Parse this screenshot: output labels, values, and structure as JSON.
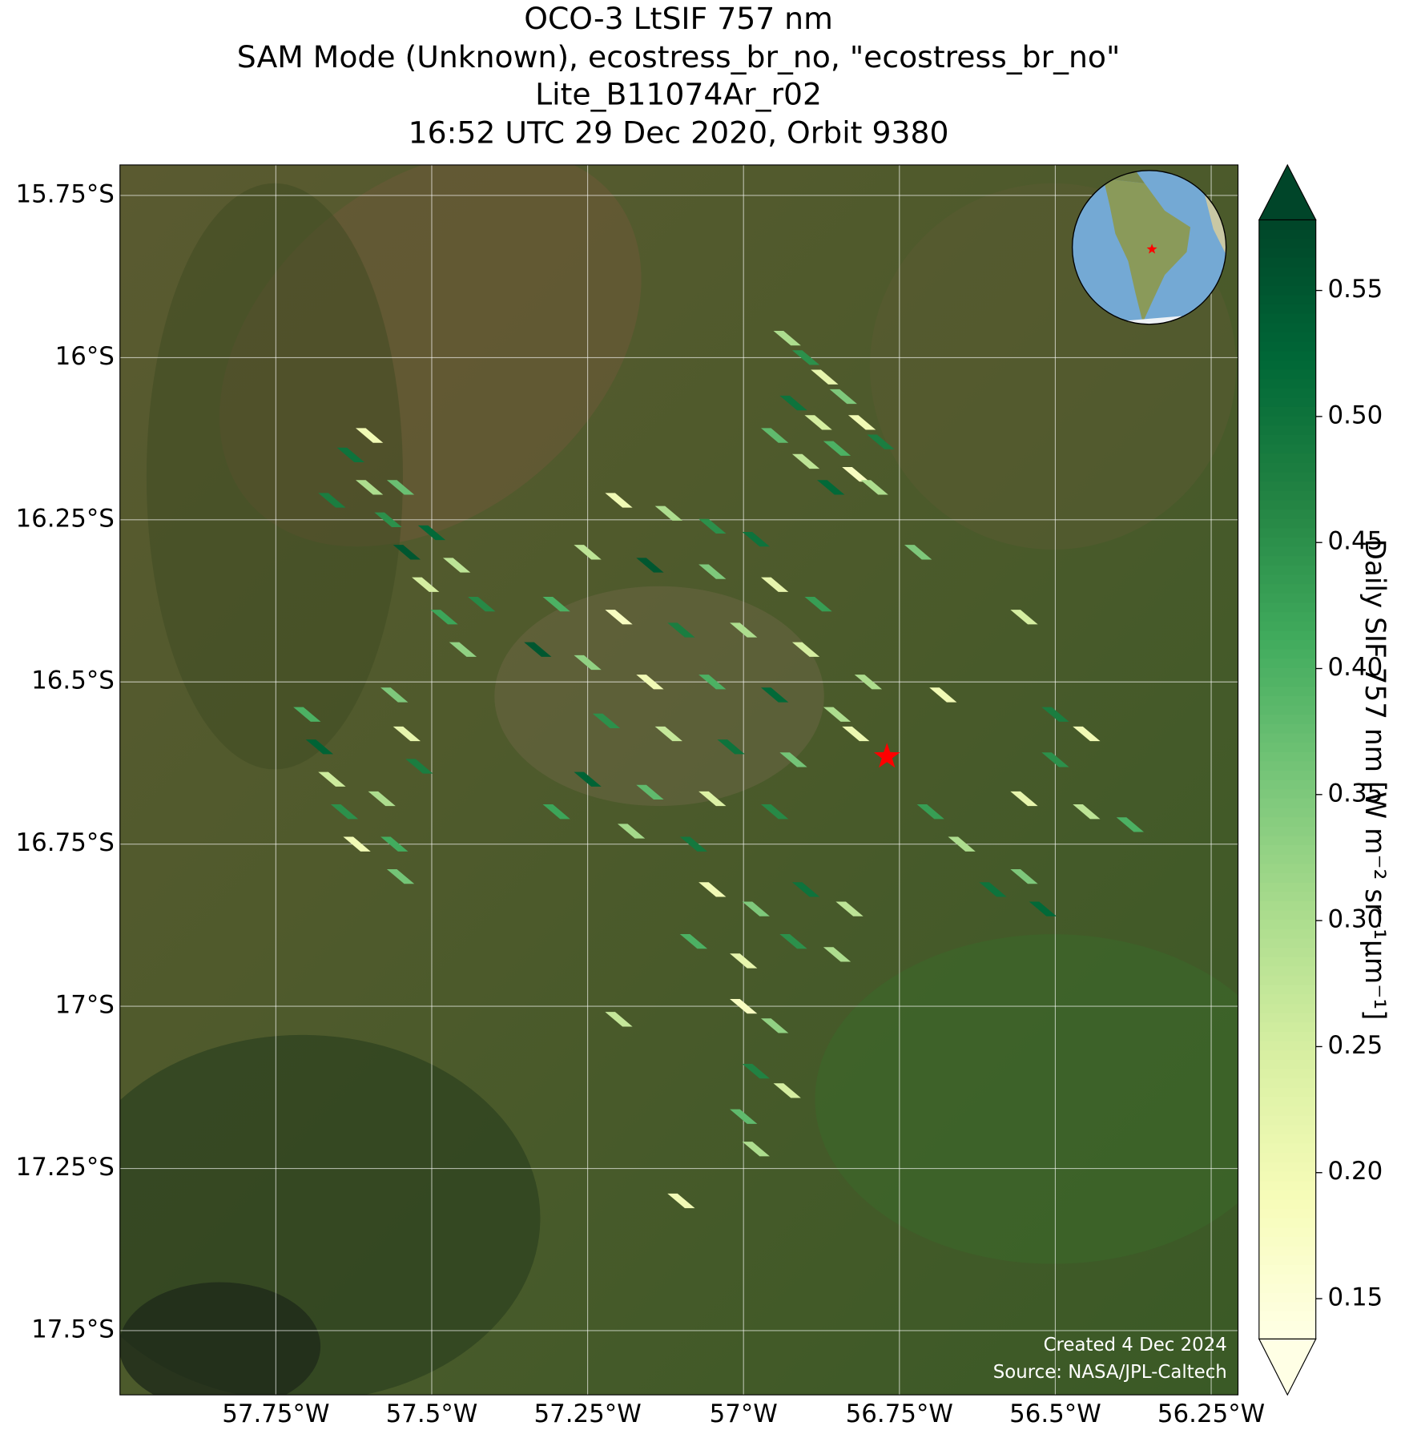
{
  "chart_data": {
    "type": "map",
    "title": [
      "OCO-3 LtSIF 757 nm",
      "SAM Mode (Unknown), ecostress_br_no, \"ecostress_br_no\"",
      "Lite_B11074Ar_r02",
      "16:52 UTC 29 Dec 2020, Orbit 9380"
    ],
    "xlim": [
      -58.0,
      -56.207
    ],
    "ylim": [
      -17.599,
      -15.703
    ],
    "xticks": [
      {
        "value": -57.75,
        "label": "57.75°W"
      },
      {
        "value": -57.5,
        "label": "57.5°W"
      },
      {
        "value": -57.25,
        "label": "57.25°W"
      },
      {
        "value": -57,
        "label": "57°W"
      },
      {
        "value": -56.75,
        "label": "56.75°W"
      },
      {
        "value": -56.5,
        "label": "56.5°W"
      },
      {
        "value": -56.25,
        "label": "56.25°W"
      }
    ],
    "yticks": [
      {
        "value": -15.75,
        "label": "15.75°S"
      },
      {
        "value": -16,
        "label": "16°S"
      },
      {
        "value": -16.25,
        "label": "16.25°S"
      },
      {
        "value": -16.5,
        "label": "16.5°S"
      },
      {
        "value": -16.75,
        "label": "16.75°S"
      },
      {
        "value": -17,
        "label": "17°S"
      },
      {
        "value": -17.25,
        "label": "17.25°S"
      },
      {
        "value": -17.5,
        "label": "17.5°S"
      }
    ],
    "grid": true,
    "colormap": "YlGn",
    "clim": [
      0.134,
      0.578
    ],
    "cticks": [
      0.15,
      {
        "value": 0.2,
        "label": "0.20"
      },
      0.25,
      {
        "value": 0.3,
        "label": "0.30"
      },
      0.35,
      {
        "value": 0.4,
        "label": "0.40"
      },
      0.45,
      {
        "value": 0.5,
        "label": "0.50"
      },
      0.55
    ],
    "colorbar_label": "Daily SIF 757 nm [W m⁻² sr⁻¹μm⁻¹]",
    "marker": {
      "lon": -56.77,
      "lat": -16.615,
      "color": "#ff0000"
    },
    "credit": [
      "Created 4 Dec 2024",
      "Source: NASA/JPL-Caltech"
    ],
    "x": [
      -56.93,
      -56.9,
      -56.87,
      -56.84,
      -56.81,
      -56.78,
      -56.92,
      -56.88,
      -56.85,
      -56.82,
      -56.79,
      -56.95,
      -56.9,
      -56.86,
      -57.63,
      -57.6,
      -57.57,
      -57.54,
      -57.51,
      -57.48,
      -57.45,
      -57.6,
      -57.66,
      -57.55,
      -57.5,
      -57.46,
      -57.42,
      -57.7,
      -57.68,
      -57.66,
      -57.64,
      -57.62,
      -57.56,
      -57.54,
      -57.52,
      -57.58,
      -57.56,
      -57.55,
      -57.2,
      -57.12,
      -57.05,
      -56.98,
      -57.25,
      -57.15,
      -57.05,
      -56.95,
      -56.88,
      -57.3,
      -57.2,
      -57.1,
      -57.0,
      -56.9,
      -57.33,
      -57.25,
      -57.15,
      -57.05,
      -56.95,
      -56.85,
      -57.22,
      -57.12,
      -57.02,
      -56.92,
      -56.82,
      -57.25,
      -57.15,
      -57.05,
      -56.95,
      -57.18,
      -57.08,
      -57.3,
      -57.05,
      -56.98,
      -56.9,
      -56.83,
      -57.08,
      -57.0,
      -56.92,
      -56.85,
      -57.0,
      -56.95,
      -56.98,
      -56.93,
      -57.0,
      -56.98,
      -57.1,
      -57.2,
      -56.7,
      -56.65,
      -56.6,
      -56.55,
      -56.5,
      -56.45,
      -56.38,
      -56.55,
      -56.52,
      -56.5,
      -56.45,
      -56.55,
      -56.72,
      -56.8,
      -56.68
    ],
    "y": [
      -15.97,
      -16.0,
      -16.03,
      -16.06,
      -16.1,
      -16.13,
      -16.07,
      -16.1,
      -16.14,
      -16.18,
      -16.2,
      -16.12,
      -16.16,
      -16.2,
      -16.15,
      -16.2,
      -16.25,
      -16.3,
      -16.35,
      -16.4,
      -16.45,
      -16.12,
      -16.22,
      -16.2,
      -16.27,
      -16.32,
      -16.38,
      -16.55,
      -16.6,
      -16.65,
      -16.7,
      -16.75,
      -16.52,
      -16.58,
      -16.63,
      -16.68,
      -16.75,
      -16.8,
      -16.22,
      -16.24,
      -16.26,
      -16.28,
      -16.3,
      -16.32,
      -16.33,
      -16.35,
      -16.38,
      -16.38,
      -16.4,
      -16.42,
      -16.42,
      -16.45,
      -16.45,
      -16.47,
      -16.5,
      -16.5,
      -16.52,
      -16.55,
      -16.56,
      -16.58,
      -16.6,
      -16.62,
      -16.58,
      -16.65,
      -16.67,
      -16.68,
      -16.7,
      -16.73,
      -16.75,
      -16.7,
      -16.82,
      -16.85,
      -16.82,
      -16.85,
      -16.9,
      -16.93,
      -16.9,
      -16.92,
      -17.0,
      -17.03,
      -17.1,
      -17.13,
      -17.17,
      -17.22,
      -17.3,
      -17.02,
      -16.7,
      -16.75,
      -16.82,
      -16.68,
      -16.62,
      -16.7,
      -16.72,
      -16.8,
      -16.85,
      -16.55,
      -16.58,
      -16.4,
      -16.3,
      -16.5,
      -16.52
    ],
    "values": [
      0.3,
      0.45,
      0.22,
      0.35,
      0.2,
      0.48,
      0.5,
      0.25,
      0.4,
      0.18,
      0.3,
      0.38,
      0.28,
      0.52,
      0.5,
      0.3,
      0.45,
      0.55,
      0.25,
      0.42,
      0.33,
      0.2,
      0.48,
      0.37,
      0.52,
      0.28,
      0.46,
      0.4,
      0.53,
      0.26,
      0.45,
      0.2,
      0.35,
      0.22,
      0.48,
      0.3,
      0.41,
      0.36,
      0.2,
      0.3,
      0.45,
      0.5,
      0.28,
      0.55,
      0.35,
      0.22,
      0.43,
      0.4,
      0.18,
      0.48,
      0.3,
      0.25,
      0.55,
      0.33,
      0.2,
      0.4,
      0.52,
      0.3,
      0.45,
      0.27,
      0.5,
      0.36,
      0.21,
      0.53,
      0.38,
      0.24,
      0.46,
      0.31,
      0.49,
      0.42,
      0.2,
      0.35,
      0.5,
      0.28,
      0.4,
      0.22,
      0.45,
      0.3,
      0.18,
      0.33,
      0.47,
      0.25,
      0.38,
      0.3,
      0.2,
      0.27,
      0.43,
      0.3,
      0.5,
      0.22,
      0.45,
      0.28,
      0.4,
      0.35,
      0.52,
      0.48,
      0.2,
      0.25,
      0.35,
      0.3,
      0.2
    ]
  }
}
